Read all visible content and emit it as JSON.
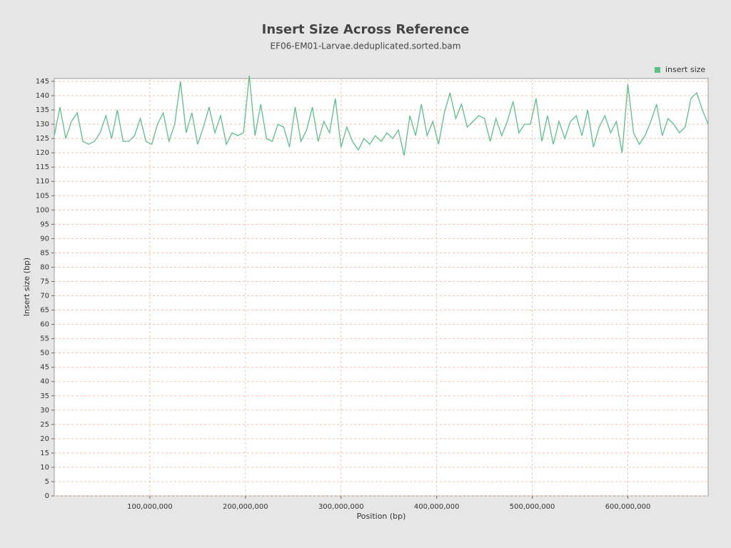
{
  "chart_data": {
    "type": "line",
    "title": "Insert Size Across Reference",
    "subtitle": "EF06-EM01-Larvae.deduplicated.sorted.bam",
    "x_label": "Position (bp)",
    "y_label": "Insert size (bp)",
    "xlim": [
      0,
      684000000
    ],
    "ylim": [
      0,
      146
    ],
    "xticks": [
      {
        "value": 100000000,
        "label": "100,000,000"
      },
      {
        "value": 200000000,
        "label": "200,000,000"
      },
      {
        "value": 300000000,
        "label": "300,000,000"
      },
      {
        "value": 400000000,
        "label": "400,000,000"
      },
      {
        "value": 500000000,
        "label": "500,000,000"
      },
      {
        "value": 600000000,
        "label": "600,000,000"
      }
    ],
    "yticks": [
      0,
      5,
      10,
      15,
      20,
      25,
      30,
      35,
      40,
      45,
      50,
      55,
      60,
      65,
      70,
      75,
      80,
      85,
      90,
      95,
      100,
      105,
      110,
      115,
      120,
      125,
      130,
      135,
      140,
      145
    ],
    "grid": true,
    "legend": "top-right",
    "x": [
      0,
      6000000,
      12000000,
      18000000,
      24000000,
      30000000,
      36000000,
      42000000,
      48000000,
      54000000,
      60000000,
      66000000,
      72000000,
      78000000,
      84000000,
      90000000,
      96000000,
      102000000,
      108000000,
      114000000,
      120000000,
      126000000,
      132000000,
      138000000,
      144000000,
      150000000,
      156000000,
      162000000,
      168000000,
      174000000,
      180000000,
      186000000,
      192000000,
      198000000,
      204000000,
      210000000,
      216000000,
      222000000,
      228000000,
      234000000,
      240000000,
      246000000,
      252000000,
      258000000,
      264000000,
      270000000,
      276000000,
      282000000,
      288000000,
      294000000,
      300000000,
      306000000,
      312000000,
      318000000,
      324000000,
      330000000,
      336000000,
      342000000,
      348000000,
      354000000,
      360000000,
      366000000,
      372000000,
      378000000,
      384000000,
      390000000,
      396000000,
      402000000,
      408000000,
      414000000,
      420000000,
      426000000,
      432000000,
      438000000,
      444000000,
      450000000,
      456000000,
      462000000,
      468000000,
      474000000,
      480000000,
      486000000,
      492000000,
      498000000,
      504000000,
      510000000,
      516000000,
      522000000,
      528000000,
      534000000,
      540000000,
      546000000,
      552000000,
      558000000,
      564000000,
      570000000,
      576000000,
      582000000,
      588000000,
      594000000,
      600000000,
      606000000,
      612000000,
      618000000,
      624000000,
      630000000,
      636000000,
      642000000,
      648000000,
      654000000,
      660000000,
      666000000,
      672000000,
      678000000,
      684000000
    ],
    "series": [
      {
        "name": "insert size",
        "color": "#5cbf8a",
        "values": [
          126,
          136,
          125,
          131,
          134,
          124,
          123,
          124,
          127,
          133,
          125,
          135,
          124,
          124,
          126,
          132,
          124,
          123,
          130,
          134,
          124,
          130,
          145,
          127,
          134,
          123,
          129,
          136,
          127,
          133,
          123,
          127,
          126,
          127,
          147,
          126,
          137,
          125,
          124,
          130,
          129,
          122,
          136,
          124,
          128,
          136,
          124,
          131,
          127,
          139,
          122,
          129,
          124,
          121,
          125,
          123,
          126,
          124,
          127,
          125,
          128,
          119,
          133,
          126,
          137,
          126,
          131,
          123,
          134,
          141,
          132,
          137,
          129,
          131,
          133,
          132,
          124,
          132,
          126,
          131,
          138,
          127,
          130,
          130,
          139,
          124,
          133,
          123,
          131,
          125,
          131,
          133,
          126,
          135,
          122,
          129,
          133,
          127,
          131,
          120,
          144,
          127,
          123,
          126,
          131,
          137,
          126,
          132,
          130,
          127,
          129,
          139,
          141,
          135,
          130
        ]
      }
    ]
  }
}
